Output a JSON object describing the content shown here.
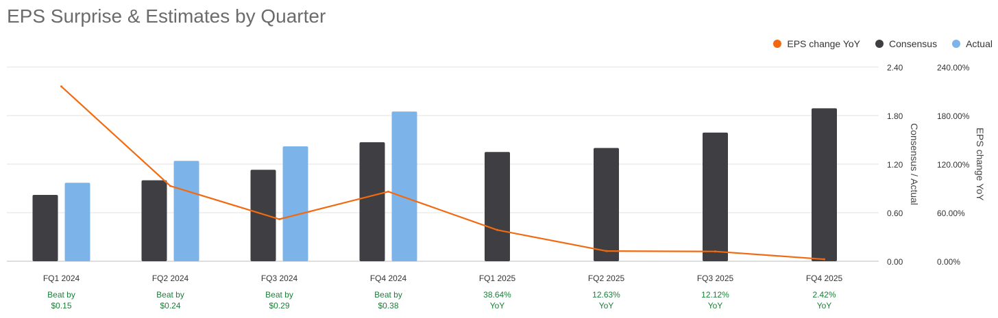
{
  "chart_data": {
    "type": "bar",
    "title": "EPS Surprise & Estimates by Quarter",
    "categories": [
      "FQ1 2024",
      "FQ2 2024",
      "FQ3 2024",
      "FQ4 2024",
      "FQ1 2025",
      "FQ2 2025",
      "FQ3 2025",
      "FQ4 2025"
    ],
    "series": [
      {
        "name": "Consensus",
        "type": "bar",
        "axis": "left",
        "color": "#3f3f43",
        "values": [
          0.82,
          1.0,
          1.13,
          1.47,
          1.35,
          1.4,
          1.59,
          1.89
        ]
      },
      {
        "name": "Actual",
        "type": "bar",
        "axis": "left",
        "color": "#7cb4ea",
        "values": [
          0.97,
          1.24,
          1.42,
          1.85,
          null,
          null,
          null,
          null
        ]
      },
      {
        "name": "EPS change YoY",
        "type": "line",
        "axis": "right",
        "color": "#f26a10",
        "values": [
          216.0,
          93.0,
          52.0,
          86.0,
          38.64,
          12.63,
          12.12,
          2.42
        ]
      }
    ],
    "y_left": {
      "label": "Consensus / Actual",
      "range": [
        0,
        2.4
      ],
      "ticks": [
        "0.00",
        "0.60",
        "1.20",
        "1.80",
        "2.40"
      ],
      "tick_values": [
        0,
        0.6,
        1.2,
        1.8,
        2.4
      ]
    },
    "y_right": {
      "label": "EPS change YoY",
      "range": [
        0,
        240
      ],
      "ticks": [
        "0.00%",
        "60.00%",
        "120.00%",
        "180.00%",
        "240.00%"
      ],
      "tick_values": [
        0,
        60,
        120,
        180,
        240
      ]
    },
    "annotations": [
      {
        "line1": "Beat by",
        "line2": "$0.15"
      },
      {
        "line1": "Beat by",
        "line2": "$0.24"
      },
      {
        "line1": "Beat by",
        "line2": "$0.29"
      },
      {
        "line1": "Beat by",
        "line2": "$0.38"
      },
      {
        "line1": "38.64%",
        "line2": "YoY"
      },
      {
        "line1": "12.63%",
        "line2": "YoY"
      },
      {
        "line1": "12.12%",
        "line2": "YoY"
      },
      {
        "line1": "2.42%",
        "line2": "YoY"
      }
    ],
    "annotation_color": "#1a7f37",
    "grid": true,
    "legend_position": "top-right"
  }
}
